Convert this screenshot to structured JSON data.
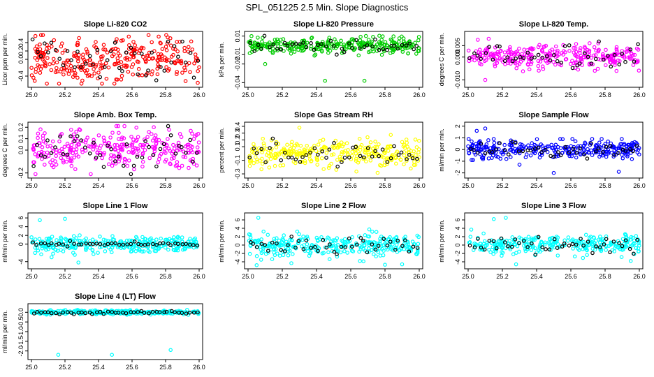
{
  "figure": {
    "title": "SPL_051225  2.5 Min. Slope Diagnostics"
  },
  "colors": {
    "red": "#ff0000",
    "green": "#00cc00",
    "magenta": "#ff00ff",
    "yellow": "#ffff00",
    "blue": "#0000ff",
    "cyan": "#00ffff",
    "black": "#000000"
  },
  "chart_data": [
    {
      "type": "scatter",
      "title": "Slope Li-820 CO2",
      "ylabel": "Licor ppm per min.",
      "color": "red",
      "xlim": [
        25.0,
        26.0
      ],
      "ylim": [
        -0.6,
        0.6
      ],
      "xticks": [
        "25.0",
        "25.2",
        "25.4",
        "25.6",
        "25.8",
        "26.0"
      ],
      "yticks": [
        "-0.4",
        "0.0",
        "0.2",
        "0.4"
      ],
      "center": 0.0,
      "spread": 0.28,
      "clip": 0.58,
      "outliers": [],
      "seed": 11
    },
    {
      "type": "scatter",
      "title": "Slope Li-820 Pressure",
      "ylabel": "kPa per min.",
      "color": "green",
      "xlim": [
        25.0,
        26.0
      ],
      "ylim": [
        -0.042,
        0.012
      ],
      "xticks": [
        "25.0",
        "25.2",
        "25.4",
        "25.6",
        "25.8",
        "26.0"
      ],
      "yticks": [
        "-0.04",
        "-0.02",
        "-0.01",
        "0.01"
      ],
      "center": 0.0,
      "spread": 0.004,
      "clip": 0.011,
      "outliers": [
        [
          25.02,
          0.01
        ],
        [
          25.45,
          -0.038
        ],
        [
          25.68,
          -0.038
        ],
        [
          25.1,
          -0.02
        ]
      ],
      "seed": 23
    },
    {
      "type": "scatter",
      "title": "Slope Li-820 Temp.",
      "ylabel": "degrees C per min.",
      "color": "magenta",
      "xlim": [
        25.0,
        26.0
      ],
      "ylim": [
        -0.012,
        0.01
      ],
      "xticks": [
        "25.0",
        "25.2",
        "25.4",
        "25.6",
        "25.8",
        "26.0"
      ],
      "yticks": [
        "-0.010",
        "0.000",
        "0.005"
      ],
      "center": 0.0,
      "spread": 0.0025,
      "clip": 0.0095,
      "outliers": [
        [
          25.12,
          0.008
        ],
        [
          25.1,
          -0.01
        ],
        [
          25.76,
          0.006
        ],
        [
          25.74,
          -0.006
        ]
      ],
      "seed": 37
    },
    {
      "type": "scatter",
      "title": "Slope Amb. Box Temp.",
      "ylabel": "degrees C per min.",
      "color": "magenta",
      "xlim": [
        25.0,
        26.0
      ],
      "ylim": [
        -0.22,
        0.22
      ],
      "xticks": [
        "25.0",
        "25.2",
        "25.4",
        "25.6",
        "25.8",
        "26.0"
      ],
      "yticks": [
        "-0.2",
        "0.0",
        "0.1",
        "0.2"
      ],
      "center": 0.0,
      "spread": 0.09,
      "clip": 0.21,
      "outliers": [],
      "seed": 41
    },
    {
      "type": "scatter",
      "title": "Slope Gas Stream RH",
      "ylabel": "percent per min.",
      "color": "yellow",
      "xlim": [
        25.0,
        26.0
      ],
      "ylim": [
        -0.32,
        0.42
      ],
      "xticks": [
        "25.0",
        "25.2",
        "25.4",
        "25.6",
        "25.8",
        "26.0"
      ],
      "yticks": [
        "-0.3",
        "-0.1",
        "0.1",
        "0.2",
        "0.3",
        "0.4"
      ],
      "center": 0.0,
      "spread": 0.1,
      "clip": 0.35,
      "outliers": [
        [
          25.3,
          0.38
        ]
      ],
      "seed": 53
    },
    {
      "type": "scatter",
      "title": "Slope Sample Flow",
      "ylabel": "ml/min per min.",
      "color": "blue",
      "xlim": [
        25.0,
        26.0
      ],
      "ylim": [
        -2.2,
        2.1
      ],
      "xticks": [
        "25.0",
        "25.2",
        "25.4",
        "25.6",
        "25.8",
        "26.0"
      ],
      "yticks": [
        "-2",
        "-1",
        "0",
        "1",
        "2"
      ],
      "center": 0.0,
      "spread": 0.35,
      "clip": 0.9,
      "outliers": [
        [
          25.05,
          1.6
        ],
        [
          25.1,
          1.8
        ],
        [
          25.02,
          -0.9
        ],
        [
          25.3,
          -1.3
        ],
        [
          25.5,
          -2.0
        ],
        [
          25.88,
          -1.9
        ],
        [
          25.78,
          0.9
        ]
      ],
      "seed": 67
    },
    {
      "type": "scatter",
      "title": "Slope Line 1 Flow",
      "ylabel": "ml/min per min.",
      "color": "cyan",
      "xlim": [
        25.0,
        26.0
      ],
      "ylim": [
        -5.0,
        6.5
      ],
      "xticks": [
        "25.0",
        "25.2",
        "25.4",
        "25.6",
        "25.8",
        "26.0"
      ],
      "yticks": [
        "-4",
        "0",
        "2",
        "4",
        "6"
      ],
      "center": 0.0,
      "spread": 0.9,
      "clip": 4.0,
      "blackSpread": 0.25,
      "outliers": [
        [
          25.05,
          5.5
        ],
        [
          25.2,
          5.8
        ],
        [
          25.28,
          -4.2
        ],
        [
          25.12,
          -3.0
        ]
      ],
      "seed": 71
    },
    {
      "type": "scatter",
      "title": "Slope Line 2 Flow",
      "ylabel": "ml/min per min.",
      "color": "cyan",
      "xlim": [
        25.0,
        26.0
      ],
      "ylim": [
        -5.0,
        7.0
      ],
      "xticks": [
        "25.0",
        "25.2",
        "25.4",
        "25.6",
        "25.8",
        "26.0"
      ],
      "yticks": [
        "-4",
        "-2",
        "0",
        "2",
        "4",
        "6"
      ],
      "center": 0.0,
      "spread": 1.3,
      "clip": 4.5,
      "outliers": [
        [
          25.06,
          6.5
        ],
        [
          25.05,
          -4.8
        ],
        [
          25.8,
          -4.7
        ],
        [
          25.9,
          -4.6
        ]
      ],
      "seed": 83
    },
    {
      "type": "scatter",
      "title": "Slope Line 3 Flow",
      "ylabel": "ml/min per min.",
      "color": "cyan",
      "xlim": [
        25.0,
        26.0
      ],
      "ylim": [
        -5.0,
        7.0
      ],
      "xticks": [
        "25.0",
        "25.2",
        "25.4",
        "25.6",
        "25.8",
        "26.0"
      ],
      "yticks": [
        "-4",
        "-2",
        "0",
        "2",
        "4",
        "6"
      ],
      "center": 0.0,
      "spread": 1.2,
      "clip": 4.5,
      "outliers": [
        [
          25.15,
          6.2
        ],
        [
          25.22,
          6.5
        ],
        [
          25.28,
          -4.6
        ],
        [
          25.95,
          -3.8
        ]
      ],
      "seed": 97
    },
    {
      "type": "scatter",
      "title": "Slope Line 4 (LT) Flow",
      "ylabel": "ml/min per min.",
      "color": "cyan",
      "xlim": [
        25.0,
        26.0
      ],
      "ylim": [
        -2.3,
        0.3
      ],
      "xticks": [
        "25.0",
        "25.2",
        "25.4",
        "25.6",
        "25.8",
        "26.0"
      ],
      "yticks": [
        "-2.0",
        "-1.5",
        "-1.0",
        "-0.5",
        "0.0"
      ],
      "center": 0.0,
      "spread": 0.05,
      "clip": 0.2,
      "blackSpread": 0.04,
      "outliers": [
        [
          25.16,
          -2.2
        ],
        [
          25.48,
          -2.2
        ],
        [
          25.83,
          -1.95
        ]
      ],
      "seed": 101
    }
  ]
}
